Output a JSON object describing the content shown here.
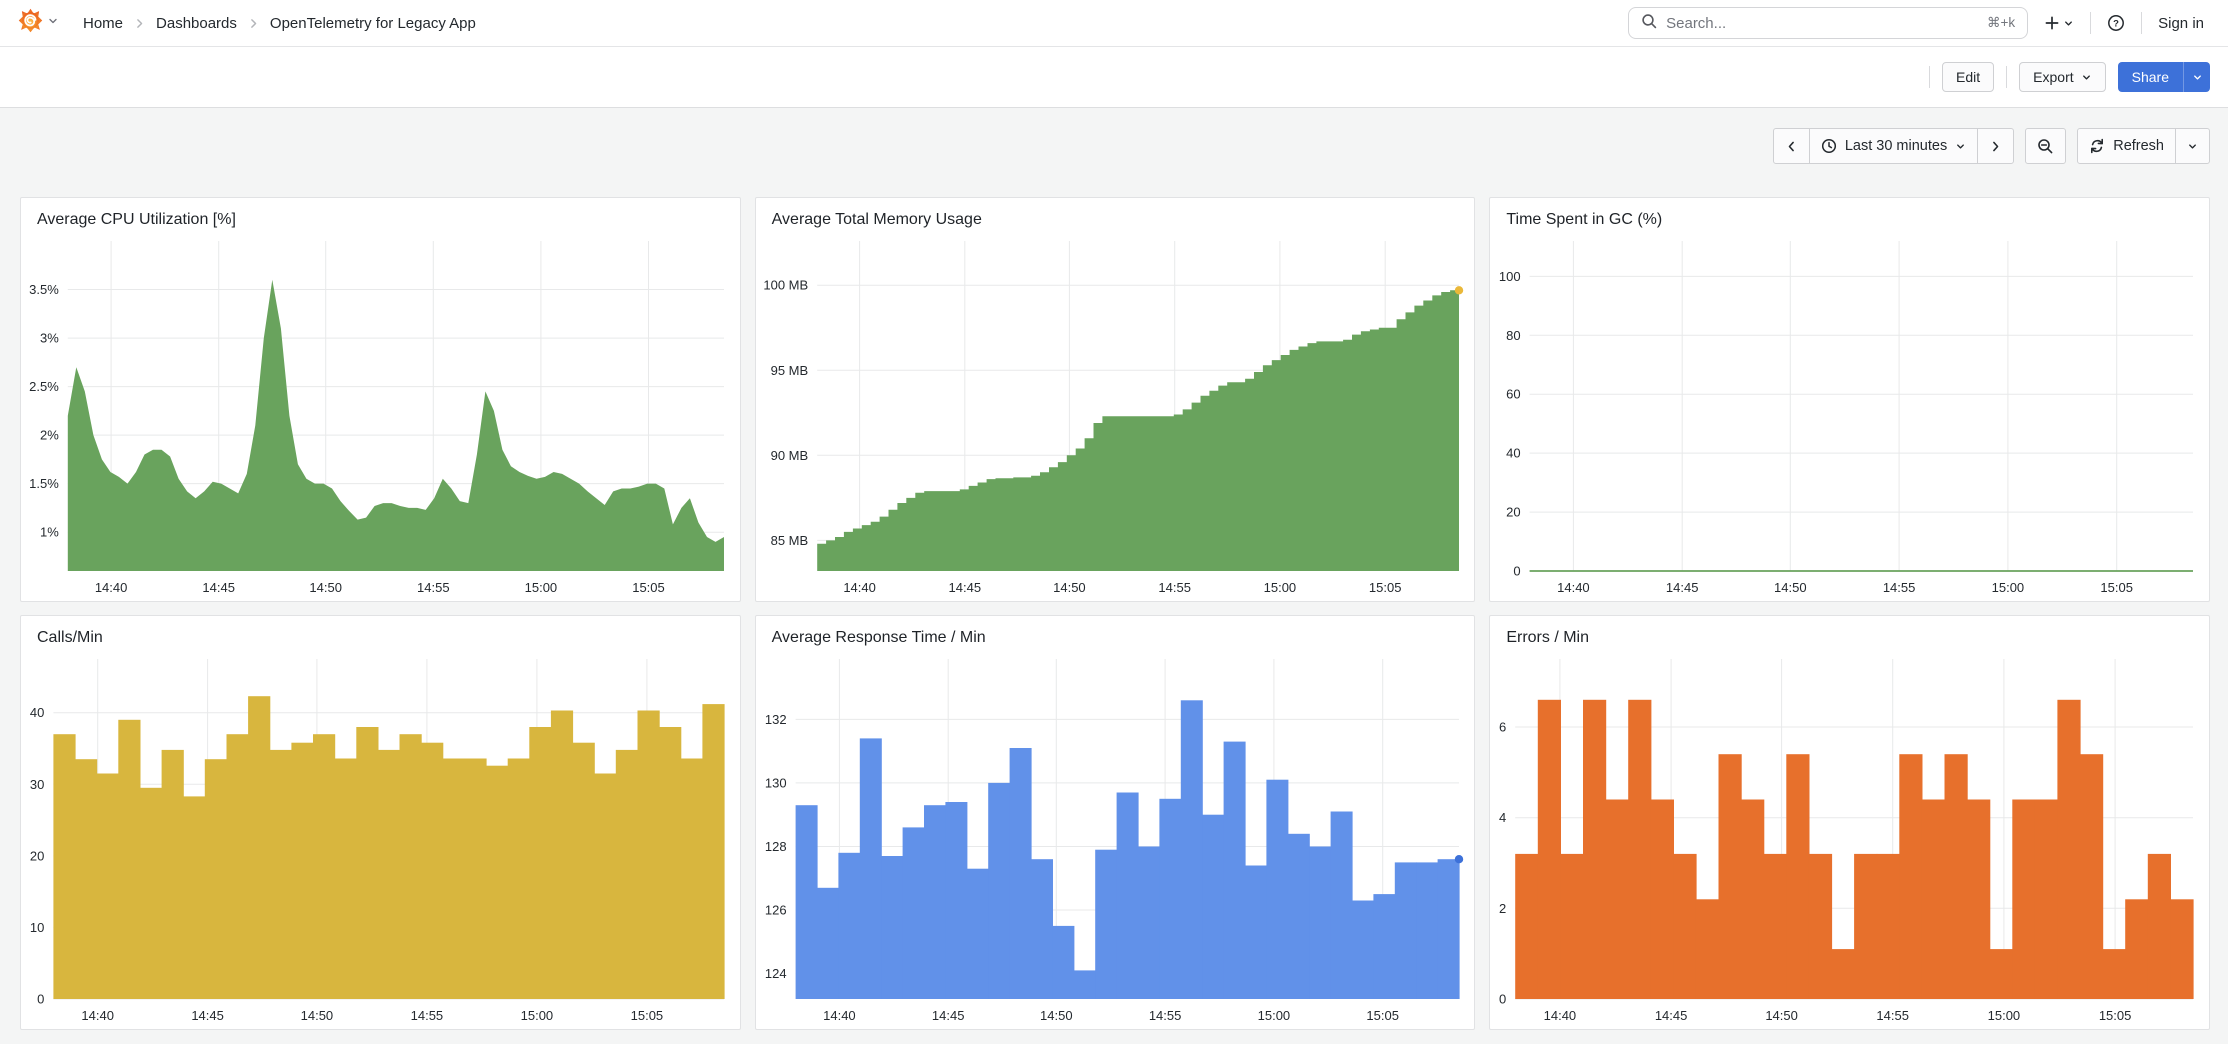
{
  "header": {
    "breadcrumb": [
      "Home",
      "Dashboards",
      "OpenTelemetry for Legacy App"
    ],
    "search": {
      "placeholder": "Search...",
      "shortcut": "⌘+k"
    },
    "sign_in": "Sign in"
  },
  "toolbar": {
    "edit_label": "Edit",
    "export_label": "Export",
    "share_label": "Share"
  },
  "timebar": {
    "range_label": "Last 30 minutes",
    "refresh_label": "Refresh"
  },
  "colors": {
    "accent_blue": "#3d71d9",
    "series_green": "#69a35d",
    "series_yellow": "#d8b63e",
    "series_blue": "#6191e9",
    "series_orange": "#e7702c",
    "memory_end_dot": "#eab839"
  },
  "chart_data": [
    {
      "title": "Average CPU Utilization [%]",
      "type": "area",
      "color": "#69a35d",
      "ylim": [
        0.6,
        4.0
      ],
      "yticks": [
        {
          "v": 1,
          "label": "1%"
        },
        {
          "v": 1.5,
          "label": "1.5%"
        },
        {
          "v": 2,
          "label": "2%"
        },
        {
          "v": 2.5,
          "label": "2.5%"
        },
        {
          "v": 3,
          "label": "3%"
        },
        {
          "v": 3.5,
          "label": "3.5%"
        }
      ],
      "xticks": [
        {
          "f": 0.066,
          "label": "14:40"
        },
        {
          "f": 0.23,
          "label": "14:45"
        },
        {
          "f": 0.393,
          "label": "14:50"
        },
        {
          "f": 0.557,
          "label": "14:55"
        },
        {
          "f": 0.721,
          "label": "15:00"
        },
        {
          "f": 0.885,
          "label": "15:05"
        }
      ],
      "values": [
        2.2,
        2.7,
        2.45,
        2.0,
        1.75,
        1.62,
        1.57,
        1.5,
        1.62,
        1.8,
        1.85,
        1.85,
        1.78,
        1.55,
        1.42,
        1.35,
        1.42,
        1.52,
        1.5,
        1.45,
        1.4,
        1.6,
        2.1,
        3.0,
        3.6,
        3.1,
        2.2,
        1.7,
        1.55,
        1.5,
        1.5,
        1.45,
        1.32,
        1.22,
        1.13,
        1.15,
        1.27,
        1.3,
        1.3,
        1.27,
        1.25,
        1.25,
        1.23,
        1.35,
        1.55,
        1.45,
        1.32,
        1.3,
        1.8,
        2.45,
        2.25,
        1.85,
        1.68,
        1.62,
        1.58,
        1.55,
        1.57,
        1.62,
        1.6,
        1.55,
        1.5,
        1.42,
        1.35,
        1.28,
        1.42,
        1.45,
        1.45,
        1.47,
        1.5,
        1.5,
        1.45,
        1.08,
        1.25,
        1.35,
        1.1,
        0.95,
        0.9,
        0.95
      ]
    },
    {
      "title": "Average Total Memory Usage",
      "type": "area",
      "step": true,
      "color": "#69a35d",
      "end_dot": "#eab839",
      "ylim": [
        83.2,
        102.6
      ],
      "yticks": [
        {
          "v": 85,
          "label": "85 MB"
        },
        {
          "v": 90,
          "label": "90 MB"
        },
        {
          "v": 95,
          "label": "95 MB"
        },
        {
          "v": 100,
          "label": "100 MB"
        }
      ],
      "xticks": [
        {
          "f": 0.066,
          "label": "14:40"
        },
        {
          "f": 0.23,
          "label": "14:45"
        },
        {
          "f": 0.393,
          "label": "14:50"
        },
        {
          "f": 0.557,
          "label": "14:55"
        },
        {
          "f": 0.721,
          "label": "15:00"
        },
        {
          "f": 0.885,
          "label": "15:05"
        }
      ],
      "values": [
        84.8,
        85.0,
        85.2,
        85.5,
        85.7,
        85.9,
        86.1,
        86.4,
        86.8,
        87.2,
        87.5,
        87.8,
        87.9,
        87.9,
        87.9,
        87.9,
        88.0,
        88.2,
        88.4,
        88.6,
        88.65,
        88.65,
        88.7,
        88.7,
        88.8,
        89.0,
        89.3,
        89.6,
        90.0,
        90.4,
        91.0,
        91.9,
        92.3,
        92.3,
        92.3,
        92.3,
        92.3,
        92.3,
        92.3,
        92.3,
        92.4,
        92.7,
        93.1,
        93.5,
        93.8,
        94.1,
        94.3,
        94.3,
        94.5,
        94.9,
        95.3,
        95.6,
        95.9,
        96.2,
        96.4,
        96.6,
        96.7,
        96.7,
        96.7,
        96.8,
        97.1,
        97.3,
        97.4,
        97.5,
        97.5,
        98.0,
        98.4,
        98.8,
        99.1,
        99.4,
        99.6,
        99.7,
        99.7
      ]
    },
    {
      "title": "Time Spent in GC (%)",
      "type": "line",
      "color": "#69a35d",
      "ylim": [
        0,
        112
      ],
      "yticks": [
        {
          "v": 0,
          "label": "0"
        },
        {
          "v": 20,
          "label": "20"
        },
        {
          "v": 40,
          "label": "40"
        },
        {
          "v": 60,
          "label": "60"
        },
        {
          "v": 80,
          "label": "80"
        },
        {
          "v": 100,
          "label": "100"
        }
      ],
      "xticks": [
        {
          "f": 0.066,
          "label": "14:40"
        },
        {
          "f": 0.23,
          "label": "14:45"
        },
        {
          "f": 0.393,
          "label": "14:50"
        },
        {
          "f": 0.557,
          "label": "14:55"
        },
        {
          "f": 0.721,
          "label": "15:00"
        },
        {
          "f": 0.885,
          "label": "15:05"
        }
      ],
      "values": [
        0,
        0
      ]
    },
    {
      "title": "Calls/Min",
      "type": "bars",
      "color": "#d8b63e",
      "ylim": [
        0,
        47.5
      ],
      "yticks": [
        {
          "v": 0,
          "label": "0"
        },
        {
          "v": 10,
          "label": "10"
        },
        {
          "v": 20,
          "label": "20"
        },
        {
          "v": 30,
          "label": "30"
        },
        {
          "v": 40,
          "label": "40"
        }
      ],
      "xticks": [
        {
          "f": 0.066,
          "label": "14:40"
        },
        {
          "f": 0.23,
          "label": "14:45"
        },
        {
          "f": 0.393,
          "label": "14:50"
        },
        {
          "f": 0.557,
          "label": "14:55"
        },
        {
          "f": 0.721,
          "label": "15:00"
        },
        {
          "f": 0.885,
          "label": "15:05"
        }
      ],
      "values": [
        37,
        33.5,
        31.5,
        39,
        29.5,
        34.8,
        28.3,
        33.5,
        37,
        42.3,
        34.8,
        35.8,
        37,
        33.6,
        38,
        34.8,
        37,
        35.8,
        33.6,
        33.6,
        32.6,
        33.6,
        38,
        40.3,
        35.8,
        31.5,
        34.8,
        40.3,
        38,
        33.6,
        41.2
      ]
    },
    {
      "title": "Average Response Time / Min",
      "type": "bars",
      "color": "#6191e9",
      "end_dot": "#3d71d9",
      "ylim": [
        123.2,
        133.9
      ],
      "yticks": [
        {
          "v": 124,
          "label": "124"
        },
        {
          "v": 126,
          "label": "126"
        },
        {
          "v": 128,
          "label": "128"
        },
        {
          "v": 130,
          "label": "130"
        },
        {
          "v": 132,
          "label": "132"
        }
      ],
      "xticks": [
        {
          "f": 0.066,
          "label": "14:40"
        },
        {
          "f": 0.23,
          "label": "14:45"
        },
        {
          "f": 0.393,
          "label": "14:50"
        },
        {
          "f": 0.557,
          "label": "14:55"
        },
        {
          "f": 0.721,
          "label": "15:00"
        },
        {
          "f": 0.885,
          "label": "15:05"
        }
      ],
      "values": [
        129.3,
        126.7,
        127.8,
        131.4,
        127.7,
        128.6,
        129.3,
        129.4,
        127.3,
        130.0,
        131.1,
        127.6,
        125.5,
        124.1,
        127.9,
        129.7,
        128.0,
        129.5,
        132.6,
        129.0,
        131.3,
        127.4,
        130.1,
        128.4,
        128.0,
        129.1,
        126.3,
        126.5,
        127.5,
        127.5,
        127.6
      ]
    },
    {
      "title": "Errors / Min",
      "type": "bars",
      "color": "#e7702c",
      "ylim": [
        0,
        7.5
      ],
      "yticks": [
        {
          "v": 0,
          "label": "0"
        },
        {
          "v": 2,
          "label": "2"
        },
        {
          "v": 4,
          "label": "4"
        },
        {
          "v": 6,
          "label": "6"
        }
      ],
      "xticks": [
        {
          "f": 0.066,
          "label": "14:40"
        },
        {
          "f": 0.23,
          "label": "14:45"
        },
        {
          "f": 0.393,
          "label": "14:50"
        },
        {
          "f": 0.557,
          "label": "14:55"
        },
        {
          "f": 0.721,
          "label": "15:00"
        },
        {
          "f": 0.885,
          "label": "15:05"
        }
      ],
      "values": [
        3.2,
        6.6,
        3.2,
        6.6,
        4.4,
        6.6,
        4.4,
        3.2,
        2.2,
        5.4,
        4.4,
        3.2,
        5.4,
        3.2,
        1.1,
        3.2,
        3.2,
        5.4,
        4.4,
        5.4,
        4.4,
        1.1,
        4.4,
        4.4,
        6.6,
        5.4,
        1.1,
        2.2,
        3.2,
        2.2
      ]
    }
  ]
}
